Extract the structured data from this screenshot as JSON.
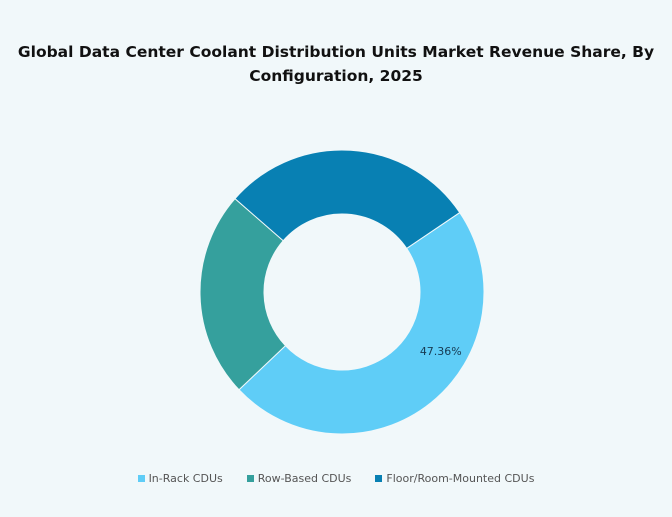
{
  "chart_data": {
    "type": "pie",
    "donut": true,
    "title_line1": "Global Data Center Coolant Distribution Units Market Revenue Share, By",
    "title_line2": "Configuration, 2025",
    "categories": [
      "In-Rack CDUs",
      "Row-Based CDUs",
      "Floor/Room-Mounted CDUs"
    ],
    "values": [
      47.36,
      23.5,
      29.14
    ],
    "colors": [
      "#5fcdf7",
      "#35a09d",
      "#0880b3"
    ],
    "data_labels": [
      "47.36%",
      "",
      ""
    ],
    "legend_position": "bottom"
  }
}
